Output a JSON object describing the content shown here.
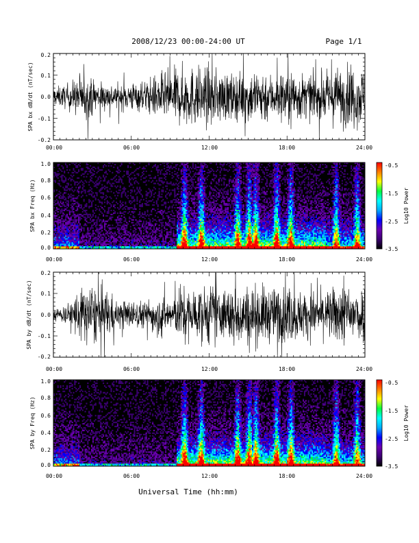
{
  "header": {
    "title": "2008/12/23  00:00-24:00 UT",
    "page": "Page 1/1"
  },
  "footer": {
    "xlabel": "Universal Time (hh:mm)"
  },
  "colors": {
    "background": "#ffffff",
    "trace": "#000000",
    "spectrogram_background": "#000000",
    "colormap": [
      "#000000",
      "#3a0070",
      "#6a00b0",
      "#0000ff",
      "#00aaff",
      "#00ffff",
      "#00ff40",
      "#ffff00",
      "#ff8000",
      "#ff0000"
    ]
  },
  "chart_data": [
    {
      "type": "line",
      "ylabel": "SPA bx dB/dt (nT/sec)",
      "xlim": [
        0,
        24
      ],
      "ylim": [
        -0.2,
        0.2
      ],
      "x_ticks": [
        "00:00",
        "06:00",
        "12:00",
        "18:00",
        "24:00"
      ],
      "y_ticks": [
        "-0.2",
        "-0.1",
        "0.0",
        "0.1",
        "0.2"
      ],
      "envelope": {
        "hours": [
          0,
          1,
          2,
          3,
          4,
          5,
          6,
          7,
          8,
          9,
          10,
          11,
          12,
          13,
          14,
          15,
          16,
          17,
          18,
          19,
          20,
          21,
          22,
          23,
          24
        ],
        "amplitude": [
          0.06,
          0.08,
          0.14,
          0.12,
          0.09,
          0.08,
          0.1,
          0.1,
          0.15,
          0.17,
          0.2,
          0.2,
          0.2,
          0.17,
          0.15,
          0.17,
          0.2,
          0.14,
          0.2,
          0.16,
          0.14,
          0.15,
          0.2,
          0.2,
          0.2
        ]
      }
    },
    {
      "type": "heatmap",
      "ylabel": "SPA bx Freq (Hz)",
      "xlim": [
        0,
        24
      ],
      "ylim": [
        0,
        1.0
      ],
      "x_ticks": [
        "00:00",
        "06:00",
        "12:00",
        "18:00",
        "24:00"
      ],
      "y_ticks": [
        "0.0",
        "0.2",
        "0.4",
        "0.6",
        "0.8",
        "1.0"
      ],
      "colorbar": {
        "label": "Log10 Power",
        "range": [
          -3.5,
          -0.5
        ],
        "ticks": [
          "-0.5",
          "-1.5",
          "-2.5",
          "-3.5"
        ]
      },
      "hot_hours": [
        10.1,
        11.4,
        14.2,
        15.1,
        15.6,
        17.2,
        18.3,
        21.8,
        23.4
      ]
    },
    {
      "type": "line",
      "ylabel": "SPA by dB/dt (nT/sec)",
      "xlim": [
        0,
        24
      ],
      "ylim": [
        -0.2,
        0.2
      ],
      "x_ticks": [
        "00:00",
        "06:00",
        "12:00",
        "18:00",
        "24:00"
      ],
      "y_ticks": [
        "-0.2",
        "-0.1",
        "0.0",
        "0.1",
        "0.2"
      ],
      "envelope": {
        "hours": [
          0,
          1,
          2,
          3,
          4,
          5,
          6,
          7,
          8,
          9,
          10,
          11,
          12,
          13,
          14,
          15,
          16,
          17,
          18,
          19,
          20,
          21,
          22,
          23,
          24
        ],
        "amplitude": [
          0.05,
          0.06,
          0.18,
          0.2,
          0.18,
          0.09,
          0.1,
          0.09,
          0.13,
          0.12,
          0.18,
          0.18,
          0.2,
          0.17,
          0.2,
          0.2,
          0.2,
          0.18,
          0.2,
          0.16,
          0.15,
          0.16,
          0.2,
          0.2,
          0.2
        ]
      }
    },
    {
      "type": "heatmap",
      "ylabel": "SPA by Freq (Hz)",
      "xlim": [
        0,
        24
      ],
      "ylim": [
        0,
        1.0
      ],
      "x_ticks": [
        "00:00",
        "06:00",
        "12:00",
        "18:00",
        "24:00"
      ],
      "y_ticks": [
        "0.0",
        "0.2",
        "0.4",
        "0.6",
        "0.8",
        "1.0"
      ],
      "colorbar": {
        "label": "Log10 Power",
        "range": [
          -3.5,
          -0.5
        ],
        "ticks": [
          "-0.5",
          "-1.5",
          "-2.5",
          "-3.5"
        ]
      },
      "hot_hours": [
        10.1,
        11.4,
        14.2,
        15.1,
        15.6,
        17.2,
        18.3,
        21.8,
        23.4
      ]
    }
  ]
}
